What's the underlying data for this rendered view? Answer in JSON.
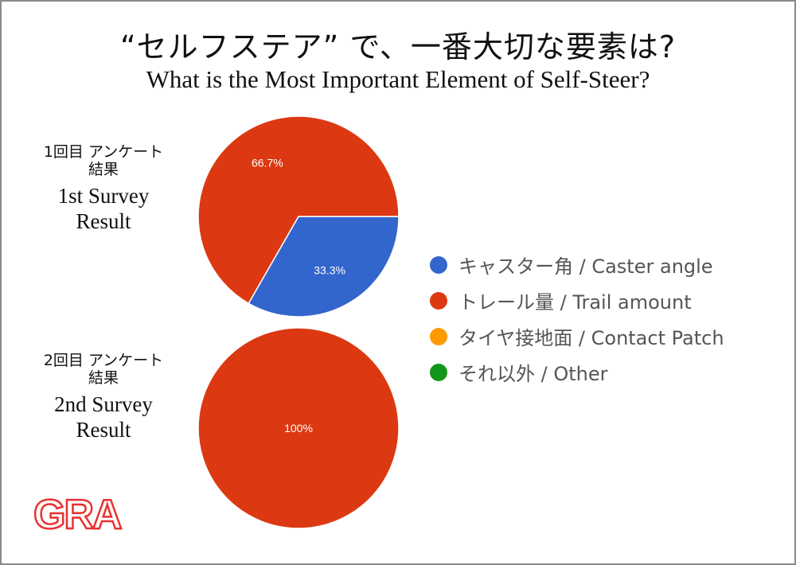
{
  "title": {
    "japanese": "“セルフステア” で、一番大切な要素は?",
    "english": "What is the Most Important Element of Self-Steer?"
  },
  "surveys": [
    {
      "label_jp_line1": "1回目 アンケート",
      "label_jp_line2": "結果",
      "label_en_line1": "1st Survey",
      "label_en_line2": "Result"
    },
    {
      "label_jp_line1": "2回目 アンケート",
      "label_jp_line2": "結果",
      "label_en_line1": "2nd Survey",
      "label_en_line2": "Result"
    }
  ],
  "legend": [
    {
      "label": "キャスター角 / Caster angle",
      "color": "#3366cc"
    },
    {
      "label": "トレール量 / Trail amount",
      "color": "#dc3912"
    },
    {
      "label": "タイヤ接地面 / Contact Patch",
      "color": "#ff9900"
    },
    {
      "label": "それ以外 / Other",
      "color": "#109618"
    }
  ],
  "logo": {
    "text": "GRA",
    "color": "#e8312f"
  },
  "chart_data": [
    {
      "type": "pie",
      "title": "1st Survey Result",
      "categories": [
        "キャスター角 / Caster angle",
        "トレール量 / Trail amount",
        "タイヤ接地面 / Contact Patch",
        "それ以外 / Other"
      ],
      "values": [
        33.3,
        66.7,
        0,
        0
      ],
      "data_labels": [
        "33.3%",
        "66.7%",
        "",
        ""
      ],
      "colors": [
        "#3366cc",
        "#dc3912",
        "#ff9900",
        "#109618"
      ],
      "legend_position": "right"
    },
    {
      "type": "pie",
      "title": "2nd Survey Result",
      "categories": [
        "キャスター角 / Caster angle",
        "トレール量 / Trail amount",
        "タイヤ接地面 / Contact Patch",
        "それ以外 / Other"
      ],
      "values": [
        0,
        100,
        0,
        0
      ],
      "data_labels": [
        "",
        "100%",
        "",
        ""
      ],
      "colors": [
        "#3366cc",
        "#dc3912",
        "#ff9900",
        "#109618"
      ],
      "legend_position": "right"
    }
  ]
}
